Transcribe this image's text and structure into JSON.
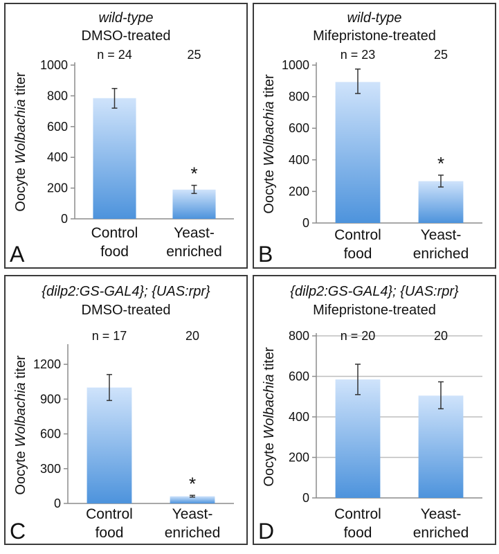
{
  "chart_data": [
    {
      "type": "bar",
      "panel_label": "A",
      "title_lines": [
        {
          "text": "wild-type",
          "italic": true
        },
        {
          "text": "DMSO-treated",
          "italic": false
        }
      ],
      "ylabel_parts": [
        {
          "text": "Oocyte ",
          "italic": false
        },
        {
          "text": "Wolbachia",
          "italic": true
        },
        {
          "text": " titer",
          "italic": false
        }
      ],
      "categories": [
        [
          "Control",
          "food"
        ],
        [
          "Yeast-",
          "enriched"
        ]
      ],
      "values": [
        785,
        190
      ],
      "errors": [
        [
          720,
          848
        ],
        [
          165,
          218
        ]
      ],
      "top_labels": [
        "n = 24",
        "25"
      ],
      "significance": [
        "",
        "*"
      ],
      "ylim": [
        0,
        1000
      ],
      "ticks": [
        0,
        200,
        400,
        600,
        800,
        1000
      ],
      "grid": false
    },
    {
      "type": "bar",
      "panel_label": "B",
      "title_lines": [
        {
          "text": "wild-type",
          "italic": true
        },
        {
          "text": "Mifepristone-treated",
          "italic": false
        }
      ],
      "ylabel_parts": [
        {
          "text": "Oocyte ",
          "italic": false
        },
        {
          "text": "Wolbachia",
          "italic": true
        },
        {
          "text": " titer",
          "italic": false
        }
      ],
      "categories": [
        [
          "Control",
          "food"
        ],
        [
          "Yeast-",
          "enriched"
        ]
      ],
      "values": [
        893,
        265
      ],
      "errors": [
        [
          820,
          975
        ],
        [
          228,
          303
        ]
      ],
      "top_labels": [
        "n = 23",
        "25"
      ],
      "significance": [
        "",
        "*"
      ],
      "ylim": [
        0,
        1000
      ],
      "ticks": [
        0,
        200,
        400,
        600,
        800,
        1000
      ],
      "grid": false
    },
    {
      "type": "bar",
      "panel_label": "C",
      "title_lines": [
        {
          "text": "{dilp2:GS-GAL4}; {UAS:rpr}",
          "italic": true
        },
        {
          "text": "DMSO-treated",
          "italic": false
        }
      ],
      "ylabel_parts": [
        {
          "text": "Oocyte ",
          "italic": false
        },
        {
          "text": "Wolbachia",
          "italic": true
        },
        {
          "text": " titer",
          "italic": false
        }
      ],
      "categories": [
        [
          "Control",
          "food"
        ],
        [
          "Yeast-",
          "enriched"
        ]
      ],
      "values": [
        1000,
        62
      ],
      "errors": [
        [
          888,
          1112
        ],
        [
          55,
          70
        ]
      ],
      "top_labels": [
        "n = 17",
        "20"
      ],
      "significance": [
        "",
        "*"
      ],
      "ylim": [
        0,
        1350
      ],
      "ticks": [
        0,
        300,
        600,
        900,
        1200
      ],
      "grid": false
    },
    {
      "type": "bar",
      "panel_label": "D",
      "title_lines": [
        {
          "text": "{dilp2:GS-GAL4}; {UAS:rpr}",
          "italic": true
        },
        {
          "text": "Mifepristone-treated",
          "italic": false
        }
      ],
      "ylabel_parts": [
        {
          "text": "Oocyte ",
          "italic": false
        },
        {
          "text": "Wolbachia",
          "italic": true
        },
        {
          "text": " titer",
          "italic": false
        }
      ],
      "categories": [
        [
          "Control",
          "food"
        ],
        [
          "Yeast-",
          "enriched"
        ]
      ],
      "values": [
        585,
        505
      ],
      "errors": [
        [
          510,
          660
        ],
        [
          440,
          573
        ]
      ],
      "top_labels": [
        "n = 20",
        "20"
      ],
      "significance": [
        "",
        ""
      ],
      "ylim": [
        0,
        800
      ],
      "ticks": [
        0,
        200,
        400,
        600,
        800
      ],
      "grid": true
    }
  ],
  "colors": {
    "bar_top": "#cfe3fb",
    "bar_bottom": "#4d93dc",
    "axis": "#8c8c8c",
    "grid": "#bdbdbd",
    "text": "#111111",
    "error": "#333333"
  }
}
